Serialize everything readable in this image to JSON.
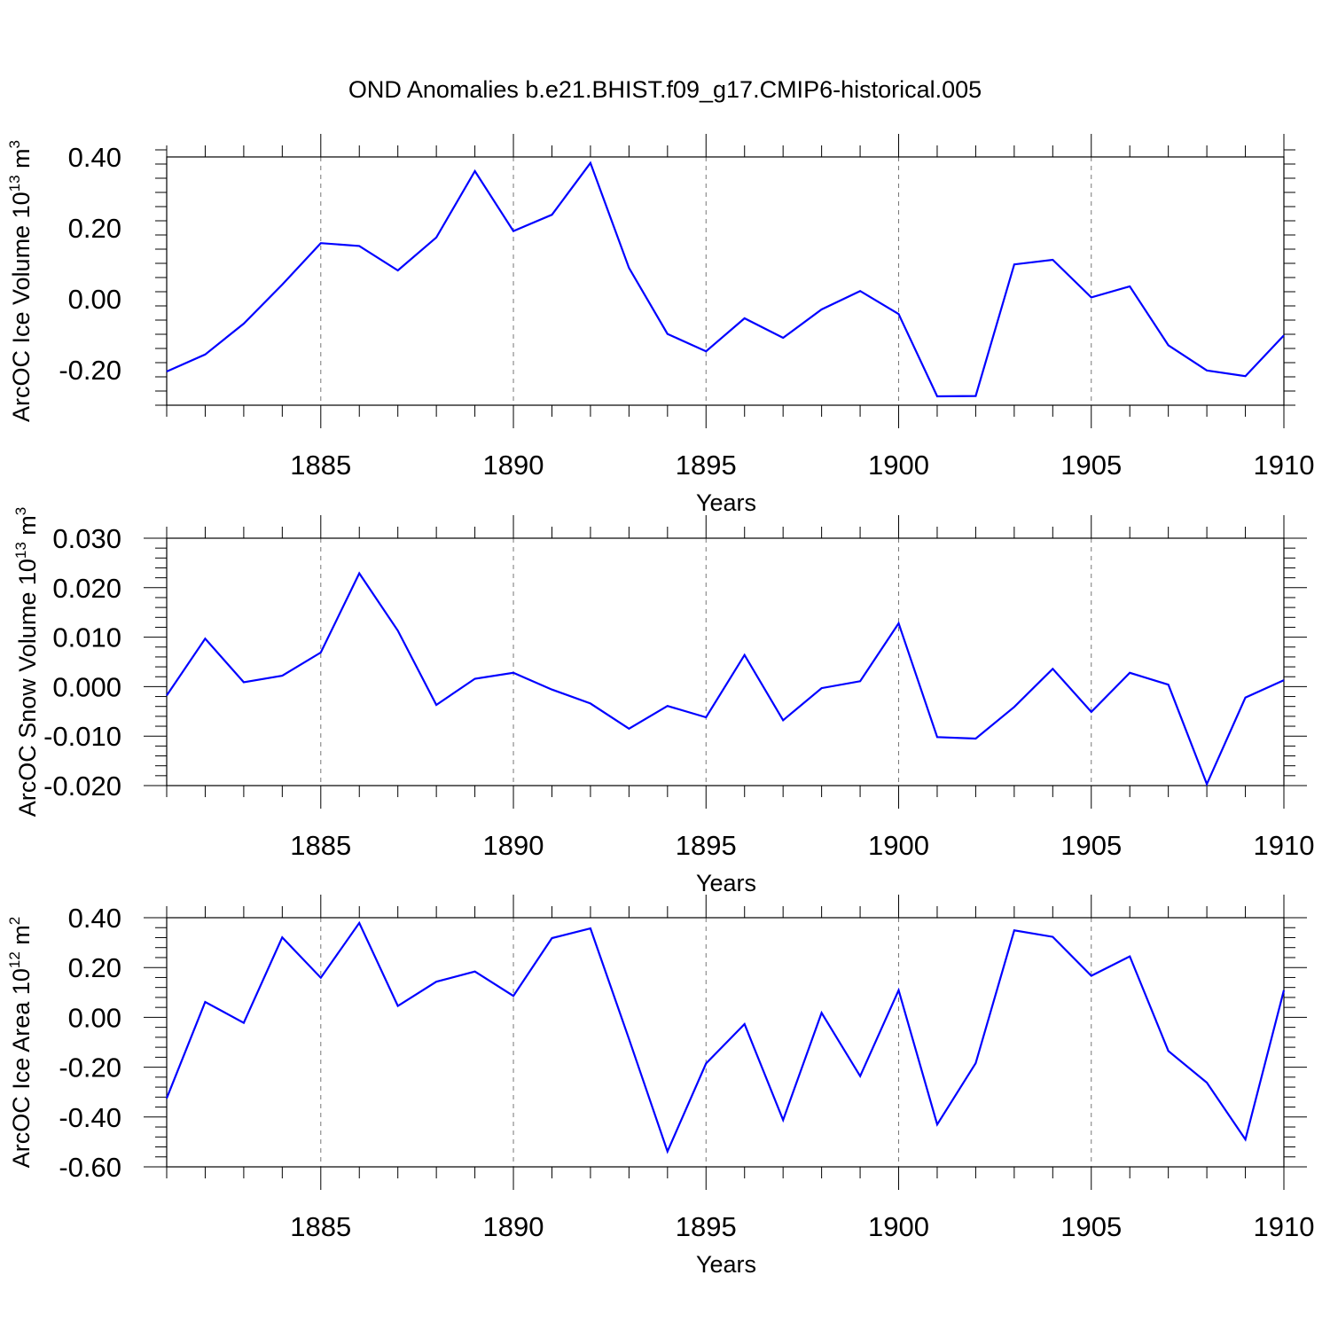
{
  "title": "OND Anomalies b.e21.BHIST.f09_g17.CMIP6-historical.005",
  "colors": {
    "line": "#0000ff",
    "axis": "#000000",
    "grid": "#777777"
  },
  "chart_data": [
    {
      "type": "line",
      "ylabel": "ArcOC Ice Volume 10",
      "ylabel_sup": "13",
      "ylabel_unit": "m",
      "ylabel_unit_sup": "3",
      "xlabel": "Years",
      "xlim": [
        1881,
        1910
      ],
      "ylim": [
        -0.3,
        0.4
      ],
      "yticks": [
        -0.2,
        0.0,
        0.2,
        0.4
      ],
      "ytick_labels": [
        "-0.20",
        "0.00",
        "0.20",
        "0.40"
      ],
      "xticks": [
        1885,
        1890,
        1895,
        1900,
        1905,
        1910
      ],
      "xtick_labels": [
        "1885",
        "1890",
        "1895",
        "1900",
        "1905",
        "1910"
      ],
      "grid": "vertical dashed at major x ticks",
      "series": [
        {
          "name": "ArcOC Ice Volume",
          "x": [
            1881,
            1882,
            1883,
            1884,
            1885,
            1886,
            1887,
            1888,
            1889,
            1890,
            1891,
            1892,
            1893,
            1894,
            1895,
            1896,
            1897,
            1898,
            1899,
            1900,
            1901,
            1902,
            1903,
            1904,
            1905,
            1906,
            1907,
            1908,
            1909,
            1910
          ],
          "values": [
            -0.205,
            -0.157,
            -0.07,
            0.04,
            0.157,
            0.149,
            0.08,
            0.173,
            0.36,
            0.191,
            0.237,
            0.383,
            0.087,
            -0.099,
            -0.148,
            -0.055,
            -0.11,
            -0.03,
            0.022,
            -0.043,
            -0.275,
            -0.274,
            0.097,
            0.11,
            0.004,
            0.035,
            -0.131,
            -0.202,
            -0.218,
            -0.103
          ]
        }
      ]
    },
    {
      "type": "line",
      "ylabel": "ArcOC Snow Volume 10",
      "ylabel_sup": "13",
      "ylabel_unit": "m",
      "ylabel_unit_sup": "3",
      "xlabel": "Years",
      "xlim": [
        1881,
        1910
      ],
      "ylim": [
        -0.02,
        0.03
      ],
      "yticks": [
        -0.02,
        -0.01,
        0.0,
        0.01,
        0.02,
        0.03
      ],
      "ytick_labels": [
        "-0.020",
        "-0.010",
        "0.000",
        "0.010",
        "0.020",
        "0.030"
      ],
      "xticks": [
        1885,
        1890,
        1895,
        1900,
        1905,
        1910
      ],
      "xtick_labels": [
        "1885",
        "1890",
        "1895",
        "1900",
        "1905",
        "1910"
      ],
      "grid": "vertical dashed at major x ticks",
      "series": [
        {
          "name": "ArcOC Snow Volume",
          "x": [
            1881,
            1882,
            1883,
            1884,
            1885,
            1886,
            1887,
            1888,
            1889,
            1890,
            1891,
            1892,
            1893,
            1894,
            1895,
            1896,
            1897,
            1898,
            1899,
            1900,
            1901,
            1902,
            1903,
            1904,
            1905,
            1906,
            1907,
            1908,
            1909,
            1910
          ],
          "values": [
            -0.0018,
            0.0097,
            0.0009,
            0.0022,
            0.0069,
            0.0229,
            0.0113,
            -0.0037,
            0.0016,
            0.0028,
            -0.0006,
            -0.0034,
            -0.0085,
            -0.0039,
            -0.0062,
            0.0064,
            -0.0068,
            -0.0003,
            0.0011,
            0.0128,
            -0.0102,
            -0.0105,
            -0.0041,
            0.0036,
            -0.0051,
            0.0028,
            0.0004,
            -0.0197,
            -0.0022,
            0.0013
          ]
        }
      ]
    },
    {
      "type": "line",
      "ylabel": "ArcOC Ice Area 10",
      "ylabel_sup": "12",
      "ylabel_unit": "m",
      "ylabel_unit_sup": "2",
      "xlabel": "Years",
      "xlim": [
        1881,
        1910
      ],
      "ylim": [
        -0.6,
        0.4
      ],
      "yticks": [
        -0.6,
        -0.4,
        -0.2,
        0.0,
        0.2,
        0.4
      ],
      "ytick_labels": [
        "-0.60",
        "-0.40",
        "-0.20",
        "0.00",
        "0.20",
        "0.40"
      ],
      "xticks": [
        1885,
        1890,
        1895,
        1900,
        1905,
        1910
      ],
      "xtick_labels": [
        "1885",
        "1890",
        "1895",
        "1900",
        "1905",
        "1910"
      ],
      "grid": "vertical dashed at major x ticks",
      "series": [
        {
          "name": "ArcOC Ice Area",
          "x": [
            1881,
            1882,
            1883,
            1884,
            1885,
            1886,
            1887,
            1888,
            1889,
            1890,
            1891,
            1892,
            1893,
            1894,
            1895,
            1896,
            1897,
            1898,
            1899,
            1900,
            1901,
            1902,
            1903,
            1904,
            1905,
            1906,
            1907,
            1908,
            1909,
            1910
          ],
          "values": [
            -0.325,
            0.062,
            -0.022,
            0.321,
            0.159,
            0.379,
            0.046,
            0.143,
            0.184,
            0.086,
            0.318,
            0.357,
            -0.087,
            -0.538,
            -0.185,
            -0.027,
            -0.412,
            0.018,
            -0.236,
            0.109,
            -0.43,
            -0.184,
            0.349,
            0.323,
            0.167,
            0.245,
            -0.135,
            -0.262,
            -0.49,
            0.109
          ]
        }
      ]
    }
  ]
}
